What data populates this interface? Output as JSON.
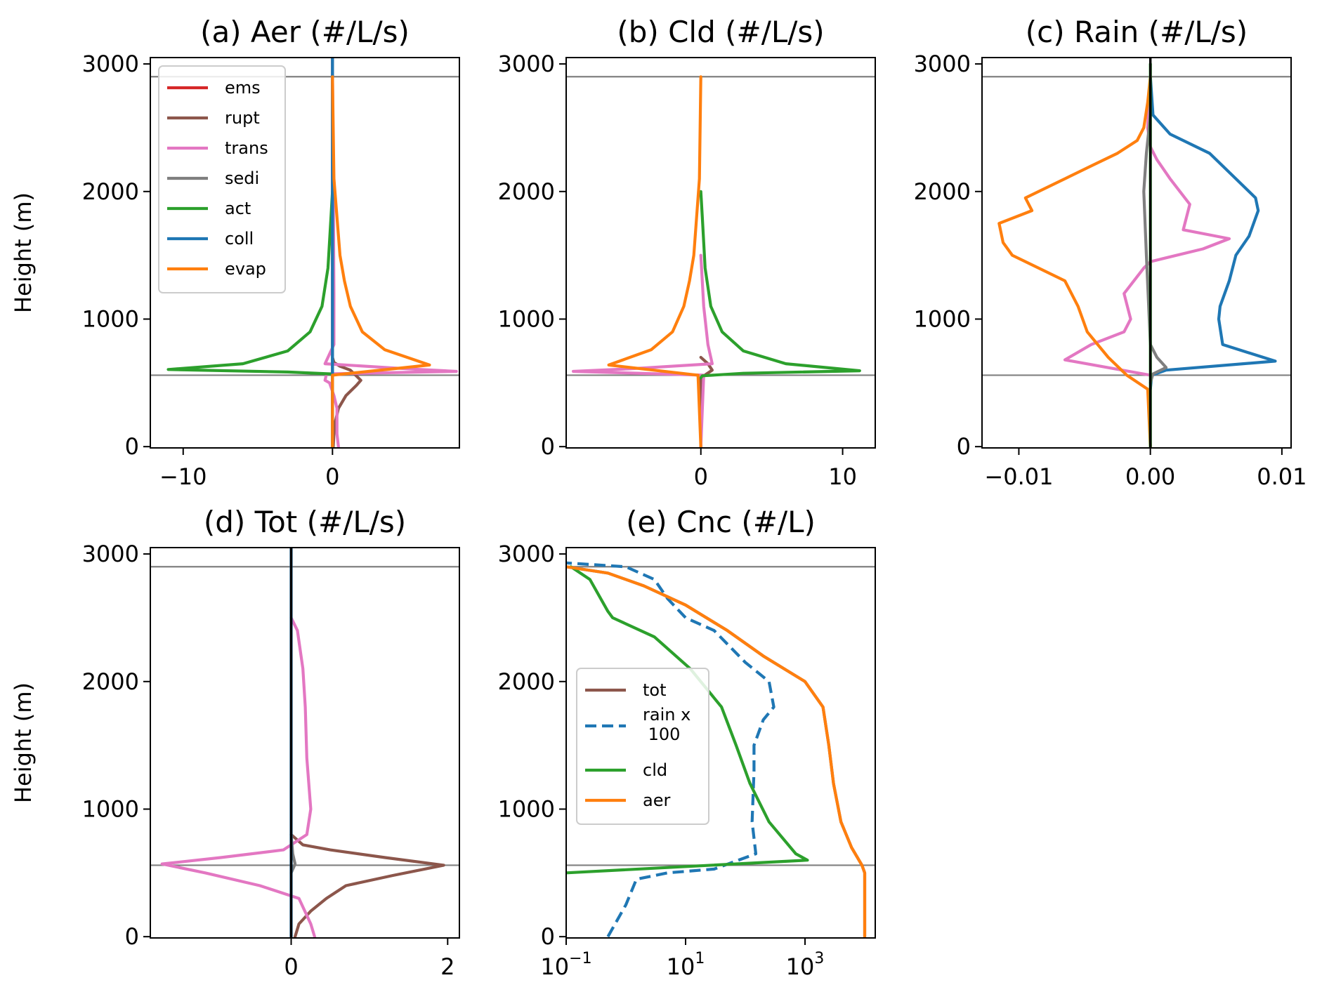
{
  "colors": {
    "ems": "#d62728",
    "rupt": "#8c564b",
    "trans": "#e377c2",
    "sedi": "#7f7f7f",
    "act": "#2ca02c",
    "coll": "#1f77b4",
    "evap": "#ff7f0e",
    "tot": "#8c564b",
    "rain": "#1f77b4",
    "cld": "#2ca02c",
    "aer": "#ff7f0e",
    "reference_line": "#808080",
    "zero_line": "#000000"
  },
  "chart_data": [
    {
      "id": "a",
      "type": "line",
      "title": "(a) Aer (#/L/s)",
      "ylabel": "Height (m)",
      "xscale": "linear",
      "xlim": [
        -12.2,
        8.5
      ],
      "ylim": [
        -10,
        3050
      ],
      "xticks": [
        -10,
        0
      ],
      "xtick_labels": [
        "−10",
        "0"
      ],
      "yticks": [
        0,
        1000,
        2000,
        3000
      ],
      "ytick_labels": [
        "0",
        "1000",
        "2000",
        "3000"
      ],
      "hlines": [
        560,
        2900
      ],
      "legend": "upper-left",
      "series": [
        {
          "key": "ems",
          "name": "ems",
          "x": [
            0,
            0
          ],
          "y": [
            0,
            3050
          ]
        },
        {
          "key": "rupt",
          "name": "rupt",
          "x": [
            0.05,
            0.1,
            0.2,
            0.4,
            0.9,
            1.6,
            1.9,
            1.2,
            0.5,
            0.1,
            0
          ],
          "y": [
            0,
            100,
            200,
            300,
            400,
            480,
            520,
            600,
            630,
            660,
            700
          ]
        },
        {
          "key": "trans",
          "name": "trans",
          "x": [
            0.4,
            0.3,
            0.3,
            0.1,
            -0.2,
            -0.5,
            -0.4,
            8.3,
            5.0,
            -0.5,
            0.1,
            0.1,
            0
          ],
          "y": [
            0,
            100,
            300,
            400,
            500,
            520,
            570,
            590,
            610,
            650,
            800,
            1200,
            3000
          ]
        },
        {
          "key": "sedi",
          "name": "sedi",
          "x": [
            0,
            0
          ],
          "y": [
            0,
            3050
          ]
        },
        {
          "key": "act",
          "name": "act",
          "x": [
            0,
            -0.1,
            -3.0,
            -11.0,
            -6.0,
            -3.0,
            -1.5,
            -0.7,
            -0.3,
            -0.1,
            0
          ],
          "y": [
            560,
            570,
            585,
            605,
            650,
            750,
            900,
            1100,
            1400,
            1800,
            2000
          ]
        },
        {
          "key": "coll",
          "name": "coll",
          "x": [
            0,
            0
          ],
          "y": [
            0,
            3050
          ]
        },
        {
          "key": "evap",
          "name": "evap",
          "x": [
            0,
            0,
            6.5,
            3.5,
            2.0,
            1.2,
            0.8,
            0.5,
            0.3,
            0.1,
            0
          ],
          "y": [
            0,
            560,
            640,
            760,
            900,
            1100,
            1300,
            1500,
            1800,
            2100,
            2900
          ]
        }
      ]
    },
    {
      "id": "b",
      "type": "line",
      "title": "(b) Cld (#/L/s)",
      "xscale": "linear",
      "xlim": [
        -9.5,
        12.3
      ],
      "ylim": [
        -10,
        3050
      ],
      "xticks": [
        0,
        10
      ],
      "xtick_labels": [
        "0",
        "10"
      ],
      "yticks": [
        0,
        1000,
        2000,
        3000
      ],
      "ytick_labels": [
        "0",
        "1000",
        "2000",
        "3000"
      ],
      "hlines": [
        560,
        2900
      ],
      "series": [
        {
          "key": "rupt",
          "x": [
            0,
            0,
            0.8,
            0.5,
            0
          ],
          "y": [
            0,
            540,
            600,
            650,
            700
          ]
        },
        {
          "key": "trans",
          "x": [
            0,
            0.2,
            -9.0,
            -5.0,
            0.8,
            0.5,
            0.2,
            0
          ],
          "y": [
            0,
            560,
            590,
            610,
            650,
            800,
            1100,
            1500
          ]
        },
        {
          "key": "act",
          "x": [
            0,
            0.1,
            3.0,
            11.2,
            6.0,
            3.0,
            1.5,
            0.7,
            0.3,
            0.1,
            0
          ],
          "y": [
            540,
            555,
            575,
            595,
            650,
            750,
            900,
            1100,
            1400,
            1800,
            2000
          ]
        },
        {
          "key": "evap",
          "x": [
            0,
            -0.2,
            -6.5,
            -3.5,
            -2.0,
            -1.2,
            -0.8,
            -0.5,
            -0.3,
            -0.1,
            0
          ],
          "y": [
            0,
            560,
            640,
            760,
            900,
            1100,
            1300,
            1500,
            1800,
            2100,
            2900
          ]
        }
      ]
    },
    {
      "id": "c",
      "type": "line",
      "title": "(c) Rain (#/L/s)",
      "xscale": "linear",
      "xlim": [
        -0.0128,
        0.0107
      ],
      "ylim": [
        -10,
        3050
      ],
      "xticks": [
        -0.01,
        0,
        0.01
      ],
      "xtick_labels": [
        "−0.01",
        "0.00",
        "0.01"
      ],
      "yticks": [
        0,
        1000,
        2000,
        3000
      ],
      "ytick_labels": [
        "0",
        "1000",
        "2000",
        "3000"
      ],
      "hlines": [
        560,
        2900
      ],
      "series": [
        {
          "key": "coll",
          "x": [
            0,
            0.0001,
            0.0012,
            0.0095,
            0.0055,
            0.0052,
            0.0053,
            0.006,
            0.0065,
            0.0075,
            0.0082,
            0.008,
            0.0065,
            0.0045,
            0.0015,
            0.0002,
            0
          ],
          "y": [
            450,
            560,
            600,
            670,
            800,
            1000,
            1100,
            1300,
            1500,
            1650,
            1850,
            1950,
            2100,
            2300,
            2450,
            2600,
            2900
          ]
        },
        {
          "key": "trans",
          "x": [
            0,
            -0.0065,
            -0.0045,
            -0.002,
            -0.0015,
            -0.002,
            -0.0005,
            0,
            0.004,
            0.006,
            0.0025,
            0.003,
            0.0015,
            0.0005,
            0,
            -0.0002,
            0
          ],
          "y": [
            560,
            680,
            800,
            900,
            1000,
            1200,
            1400,
            1450,
            1550,
            1630,
            1700,
            1900,
            2100,
            2250,
            2350,
            2500,
            2900
          ]
        },
        {
          "key": "evap",
          "x": [
            0,
            -0.0002,
            -0.0018,
            -0.0032,
            -0.0048,
            -0.0055,
            -0.0065,
            -0.0105,
            -0.0112,
            -0.0115,
            -0.009,
            -0.0095,
            -0.0065,
            -0.0045,
            -0.0025,
            -0.001,
            -0.0005,
            -0.0002,
            0
          ],
          "y": [
            0,
            450,
            560,
            700,
            900,
            1100,
            1300,
            1500,
            1600,
            1750,
            1850,
            1950,
            2100,
            2200,
            2300,
            2400,
            2500,
            2700,
            2900
          ]
        },
        {
          "key": "sedi",
          "x": [
            0,
            0.0002,
            0.0012,
            0.0005,
            0,
            -0.0003,
            -0.0005,
            -0.0003,
            0
          ],
          "y": [
            500,
            570,
            620,
            700,
            800,
            1500,
            2000,
            2300,
            2600
          ]
        },
        {
          "key": "act",
          "x": [
            0,
            0
          ],
          "y": [
            0,
            3000
          ]
        },
        {
          "key": "zero",
          "x": [
            0,
            0
          ],
          "y": [
            0,
            3050
          ]
        }
      ]
    },
    {
      "id": "d",
      "type": "line",
      "title": "(d) Tot (#/L/s)",
      "ylabel": "Height (m)",
      "xscale": "linear",
      "xlim": [
        -1.8,
        2.15
      ],
      "ylim": [
        -10,
        3050
      ],
      "xticks": [
        0,
        2
      ],
      "xtick_labels": [
        "0",
        "2"
      ],
      "yticks": [
        0,
        1000,
        2000,
        3000
      ],
      "ytick_labels": [
        "0",
        "1000",
        "2000",
        "3000"
      ],
      "hlines": [
        560,
        2900
      ],
      "series": [
        {
          "key": "rupt",
          "x": [
            0.05,
            0.1,
            0.25,
            0.45,
            0.7,
            1.3,
            1.95,
            1.2,
            0.5,
            0.15,
            0
          ],
          "y": [
            0,
            100,
            200,
            300,
            400,
            480,
            560,
            620,
            680,
            720,
            800
          ]
        },
        {
          "key": "trans",
          "x": [
            0.3,
            0.25,
            0.1,
            -0.4,
            -1.1,
            -1.65,
            -0.9,
            -0.1,
            0.2,
            0.25,
            0.2,
            0.18,
            0.15,
            0.08,
            0
          ],
          "y": [
            0,
            100,
            300,
            400,
            500,
            570,
            620,
            680,
            800,
            1000,
            1400,
            1800,
            2100,
            2400,
            2500
          ]
        },
        {
          "key": "sedi",
          "x": [
            0,
            0.05,
            0.02,
            0
          ],
          "y": [
            500,
            570,
            650,
            800
          ]
        },
        {
          "key": "coll",
          "x": [
            0,
            0
          ],
          "y": [
            0,
            3050
          ]
        },
        {
          "key": "zero",
          "x": [
            0,
            0
          ],
          "y": [
            0,
            3050
          ]
        }
      ]
    },
    {
      "id": "e",
      "type": "line",
      "title": "(e) Cnc (#/L)",
      "xscale": "log",
      "xlim": [
        0.1,
        15000
      ],
      "ylim": [
        -10,
        3050
      ],
      "xticks": [
        0.1,
        10,
        1000
      ],
      "xtick_labels": [
        {
          "base": "10",
          "exp": "−1"
        },
        {
          "base": "10",
          "exp": "1"
        },
        {
          "base": "10",
          "exp": "3"
        }
      ],
      "yticks": [
        0,
        1000,
        2000,
        3000
      ],
      "ytick_labels": [
        "0",
        "1000",
        "2000",
        "3000"
      ],
      "hlines": [
        560,
        2900
      ],
      "legend": "center-left",
      "series": [
        {
          "key": "tot",
          "name": "tot",
          "x": [
            10000,
            10000,
            9000,
            6000,
            4000,
            3000,
            2500,
            2000,
            1000,
            200,
            50,
            10,
            2,
            0.5,
            0.1
          ],
          "y": [
            0,
            500,
            560,
            700,
            900,
            1200,
            1500,
            1800,
            2000,
            2200,
            2400,
            2600,
            2750,
            2850,
            2900
          ]
        },
        {
          "key": "rain",
          "name": "rain x\n 100",
          "style": "dashed",
          "x": [
            0.5,
            1.0,
            1.5,
            5,
            30,
            150,
            130,
            140,
            140,
            200,
            300,
            250,
            100,
            30,
            10,
            5,
            3,
            1,
            0.1
          ],
          "y": [
            0,
            250,
            450,
            500,
            530,
            650,
            900,
            1300,
            1500,
            1700,
            1800,
            2000,
            2150,
            2400,
            2500,
            2650,
            2800,
            2900,
            2930
          ]
        },
        {
          "key": "cld",
          "name": "cld",
          "x": [
            0.1,
            1100,
            700,
            250,
            120,
            70,
            40,
            12,
            3,
            0.6,
            0.5,
            0.25,
            0.12
          ],
          "y": [
            500,
            600,
            650,
            900,
            1200,
            1500,
            1800,
            2100,
            2350,
            2500,
            2550,
            2800,
            2900
          ]
        },
        {
          "key": "aer",
          "name": "aer",
          "x": [
            10000,
            10000,
            9000,
            6000,
            4000,
            3000,
            2500,
            2000,
            1000,
            200,
            50,
            10,
            2,
            0.5,
            0.1
          ],
          "y": [
            0,
            500,
            560,
            700,
            900,
            1200,
            1500,
            1800,
            2000,
            2200,
            2400,
            2600,
            2750,
            2850,
            2900
          ]
        }
      ]
    }
  ]
}
